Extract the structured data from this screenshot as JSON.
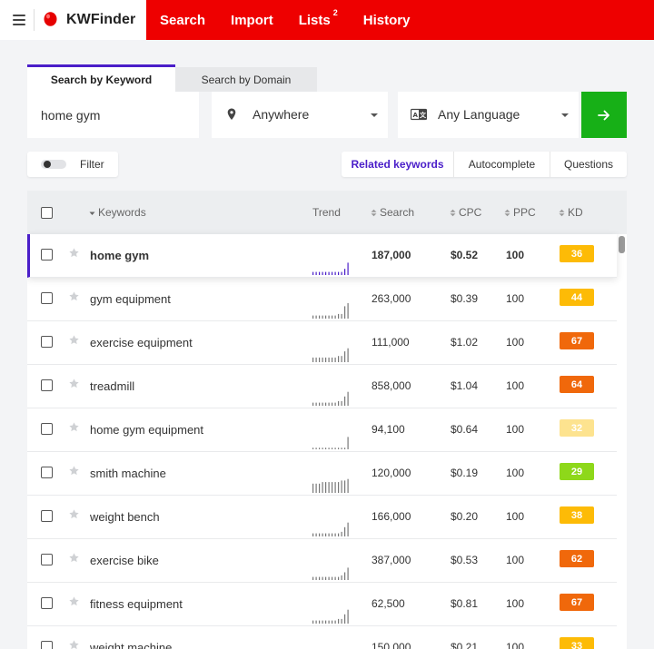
{
  "header": {
    "app_name": "KWFinder",
    "nav": [
      {
        "label": "Search"
      },
      {
        "label": "Import"
      },
      {
        "label": "Lists",
        "badge": "2"
      },
      {
        "label": "History"
      }
    ]
  },
  "search": {
    "tabs": [
      {
        "label": "Search by Keyword"
      },
      {
        "label": "Search by Domain"
      }
    ],
    "keyword_value": "home gym",
    "location_value": "Anywhere",
    "language_value": "Any Language"
  },
  "filter": {
    "label": "Filter"
  },
  "result_tabs": [
    {
      "label": "Related keywords"
    },
    {
      "label": "Autocomplete"
    },
    {
      "label": "Questions"
    }
  ],
  "table": {
    "columns": {
      "keywords": "Keywords",
      "trend": "Trend",
      "search": "Search",
      "cpc": "CPC",
      "ppc": "PPC",
      "kd": "KD"
    },
    "rows": [
      {
        "keyword": "home gym",
        "search": "187,000",
        "cpc": "$0.52",
        "ppc": "100",
        "kd": "36",
        "kd_color": "#fdbb06",
        "trend": [
          2,
          2,
          2,
          2,
          2,
          2,
          2,
          2,
          2,
          2,
          4,
          8
        ]
      },
      {
        "keyword": "gym equipment",
        "search": "263,000",
        "cpc": "$0.39",
        "ppc": "100",
        "kd": "44",
        "kd_color": "#fdbb06",
        "trend": [
          2,
          2,
          2,
          2,
          2,
          2,
          2,
          2,
          3,
          3,
          8,
          10
        ]
      },
      {
        "keyword": "exercise equipment",
        "search": "111,000",
        "cpc": "$1.02",
        "ppc": "100",
        "kd": "67",
        "kd_color": "#f0680b",
        "trend": [
          3,
          3,
          3,
          3,
          3,
          3,
          3,
          3,
          4,
          4,
          7,
          9
        ]
      },
      {
        "keyword": "treadmill",
        "search": "858,000",
        "cpc": "$1.04",
        "ppc": "100",
        "kd": "64",
        "kd_color": "#f0680b",
        "trend": [
          2,
          2,
          2,
          2,
          2,
          2,
          2,
          2,
          3,
          3,
          6,
          9
        ]
      },
      {
        "keyword": "home gym equipment",
        "search": "94,100",
        "cpc": "$0.64",
        "ppc": "100",
        "kd": "32",
        "kd_color": "#fde38f",
        "trend": [
          1,
          1,
          1,
          1,
          1,
          1,
          1,
          1,
          1,
          1,
          1,
          8
        ]
      },
      {
        "keyword": "smith machine",
        "search": "120,000",
        "cpc": "$0.19",
        "ppc": "100",
        "kd": "29",
        "kd_color": "#8ed81a",
        "trend": [
          6,
          6,
          6,
          7,
          7,
          7,
          7,
          7,
          7,
          8,
          8,
          9
        ]
      },
      {
        "keyword": "weight bench",
        "search": "166,000",
        "cpc": "$0.20",
        "ppc": "100",
        "kd": "38",
        "kd_color": "#fdbb06",
        "trend": [
          2,
          2,
          2,
          2,
          2,
          2,
          2,
          2,
          2,
          3,
          6,
          9
        ]
      },
      {
        "keyword": "exercise bike",
        "search": "387,000",
        "cpc": "$0.53",
        "ppc": "100",
        "kd": "62",
        "kd_color": "#f0680b",
        "trend": [
          2,
          2,
          2,
          2,
          2,
          2,
          2,
          2,
          2,
          3,
          5,
          8
        ]
      },
      {
        "keyword": "fitness equipment",
        "search": "62,500",
        "cpc": "$0.81",
        "ppc": "100",
        "kd": "67",
        "kd_color": "#f0680b",
        "trend": [
          2,
          2,
          2,
          2,
          2,
          2,
          2,
          2,
          3,
          3,
          6,
          9
        ]
      },
      {
        "keyword": "weight machine",
        "search": "150,000",
        "cpc": "$0.21",
        "ppc": "100",
        "kd": "33",
        "kd_color": "#fdbb06",
        "trend": [
          2,
          2,
          2,
          2,
          2,
          2,
          2,
          2,
          2,
          3,
          5,
          8
        ]
      }
    ]
  },
  "colors": {
    "brand_red": "#ee0000",
    "accent_purple": "#4a1ec9",
    "go_green": "#17b017"
  },
  "icons": {
    "menu": "hamburger-icon",
    "logo": "balloon-logo",
    "location": "location-pin-icon",
    "language": "translate-icon",
    "go": "arrow-right-icon",
    "star": "star-icon"
  }
}
